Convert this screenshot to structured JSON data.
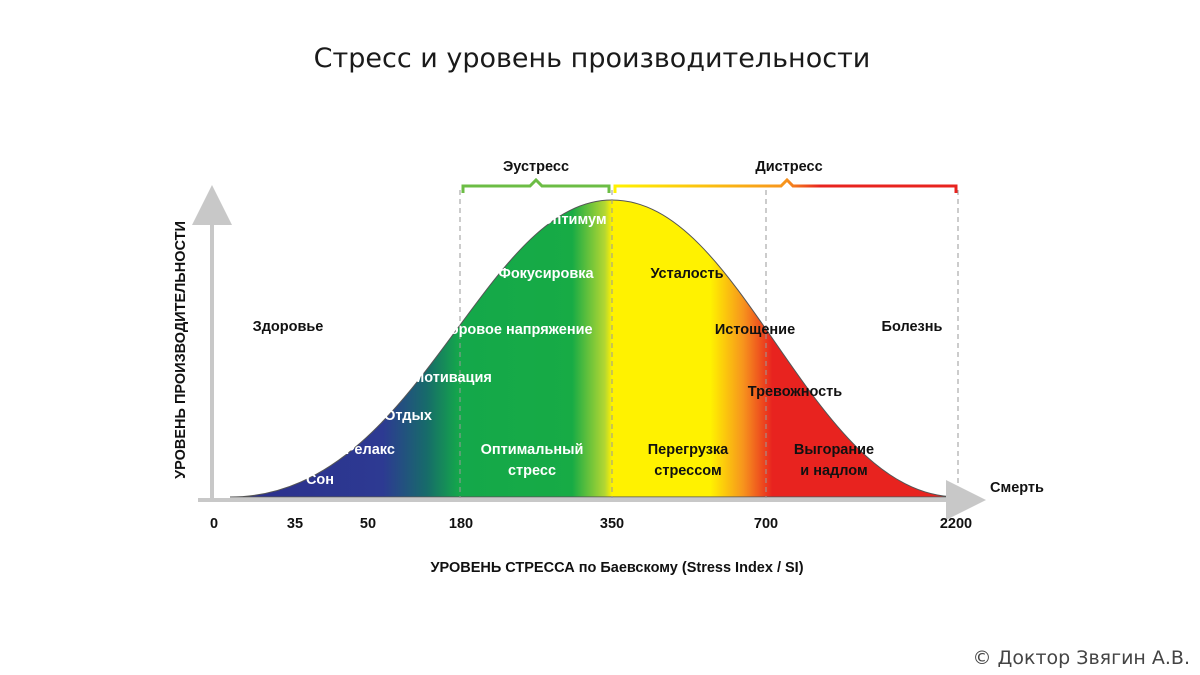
{
  "title": "Стресс и уровень производительности",
  "copyright": "© Доктор Звягин А.В.",
  "chart_data": {
    "type": "area",
    "title": "Стресс и уровень производительности",
    "xlabel": "УРОВЕНЬ СТРЕССА по Баевскому (Stress Index / SI)",
    "ylabel": "УРОВЕНЬ ПРОИЗВОДИТЕЛЬНОСТИ",
    "x_end_label": "Смерть",
    "x_ticks": [
      "0",
      "35",
      "50",
      "180",
      "350",
      "700",
      "2200"
    ],
    "braces": [
      {
        "label": "Эустресс",
        "from": "180",
        "to": "350",
        "color": "#6cbd45"
      },
      {
        "label": "Дистресс",
        "from": "350",
        "to": "2200",
        "color": "#e8231f"
      }
    ],
    "zones": [
      {
        "name": "Здоровье",
        "labels": [
          "Сон",
          "Релакс",
          "Отдых",
          "Мотивация",
          "Здоровое напряжение"
        ]
      },
      {
        "name": "Эустресс",
        "labels": [
          "Оптимум",
          "Фокусировка",
          "Оптимальный стресс"
        ]
      },
      {
        "name": "Дистресс",
        "labels": [
          "Усталость",
          "Истощение",
          "Перегрузка стрессом",
          "Тревожность",
          "Выгорание и надлом"
        ]
      },
      {
        "name": "Болезнь",
        "labels": []
      }
    ],
    "labels": {
      "zdorovie": "Здоровье",
      "bolezn": "Болезнь",
      "son": "Сон",
      "relaks": "Релакс",
      "otdyh": "Отдых",
      "motivaciya": "Мотивация",
      "zdorovoe": "Здоровое напряжение",
      "optimum": "Оптимум",
      "fokus": "Фокусировка",
      "optimalniy_1": "Оптимальный",
      "optimalniy_2": "стресс",
      "ustalost": "Усталость",
      "istoshchenie": "Истощение",
      "trevozhnost": "Тревожность",
      "peregruzka_1": "Перегрузка",
      "peregruzka_2": "стрессом",
      "vygoranie_1": "Выгорание",
      "vygoranie_2": "и надлом"
    },
    "colors": {
      "blue": "#2b2e8c",
      "green": "#14a84a",
      "yellow": "#fff200",
      "orange": "#f7941d",
      "red": "#e8231f",
      "axis": "#c8c8c8"
    }
  }
}
